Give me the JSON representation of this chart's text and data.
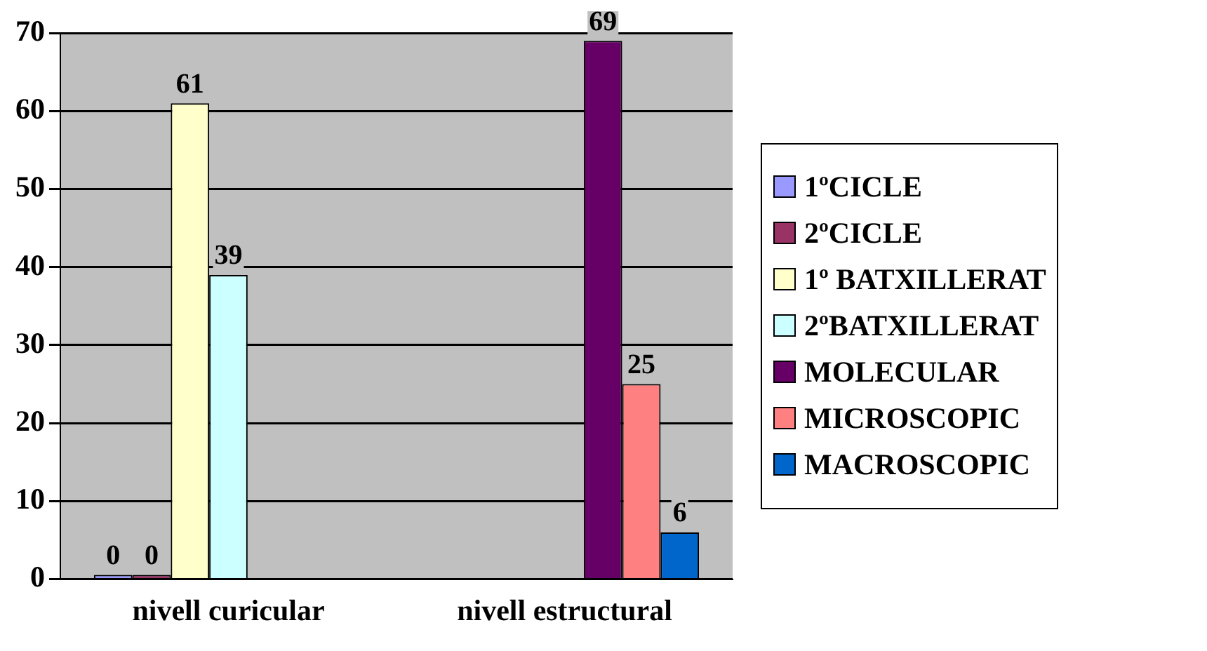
{
  "chart_data": {
    "type": "bar",
    "categories": [
      "nivell curicular",
      "nivell estructural"
    ],
    "series": [
      {
        "name": "1ºCICLE",
        "color": "#9999ff",
        "values": [
          0,
          null
        ]
      },
      {
        "name": "2ºCICLE",
        "color": "#993366",
        "values": [
          0,
          null
        ]
      },
      {
        "name": "1º BATXILLERAT",
        "color": "#ffffcc",
        "values": [
          61,
          null
        ]
      },
      {
        "name": "2ºBATXILLERAT",
        "color": "#ccffff",
        "values": [
          39,
          null
        ]
      },
      {
        "name": "MOLECULAR",
        "color": "#660066",
        "values": [
          null,
          69
        ]
      },
      {
        "name": "MICROSCOPIC",
        "color": "#ff8080",
        "values": [
          null,
          25
        ]
      },
      {
        "name": "MACROSCOPIC",
        "color": "#0066cc",
        "values": [
          null,
          6
        ]
      }
    ],
    "ylim": [
      0,
      70
    ],
    "yticks": [
      0,
      10,
      20,
      30,
      40,
      50,
      60,
      70
    ],
    "grid": "y",
    "legend": "right",
    "data_labels": true
  }
}
